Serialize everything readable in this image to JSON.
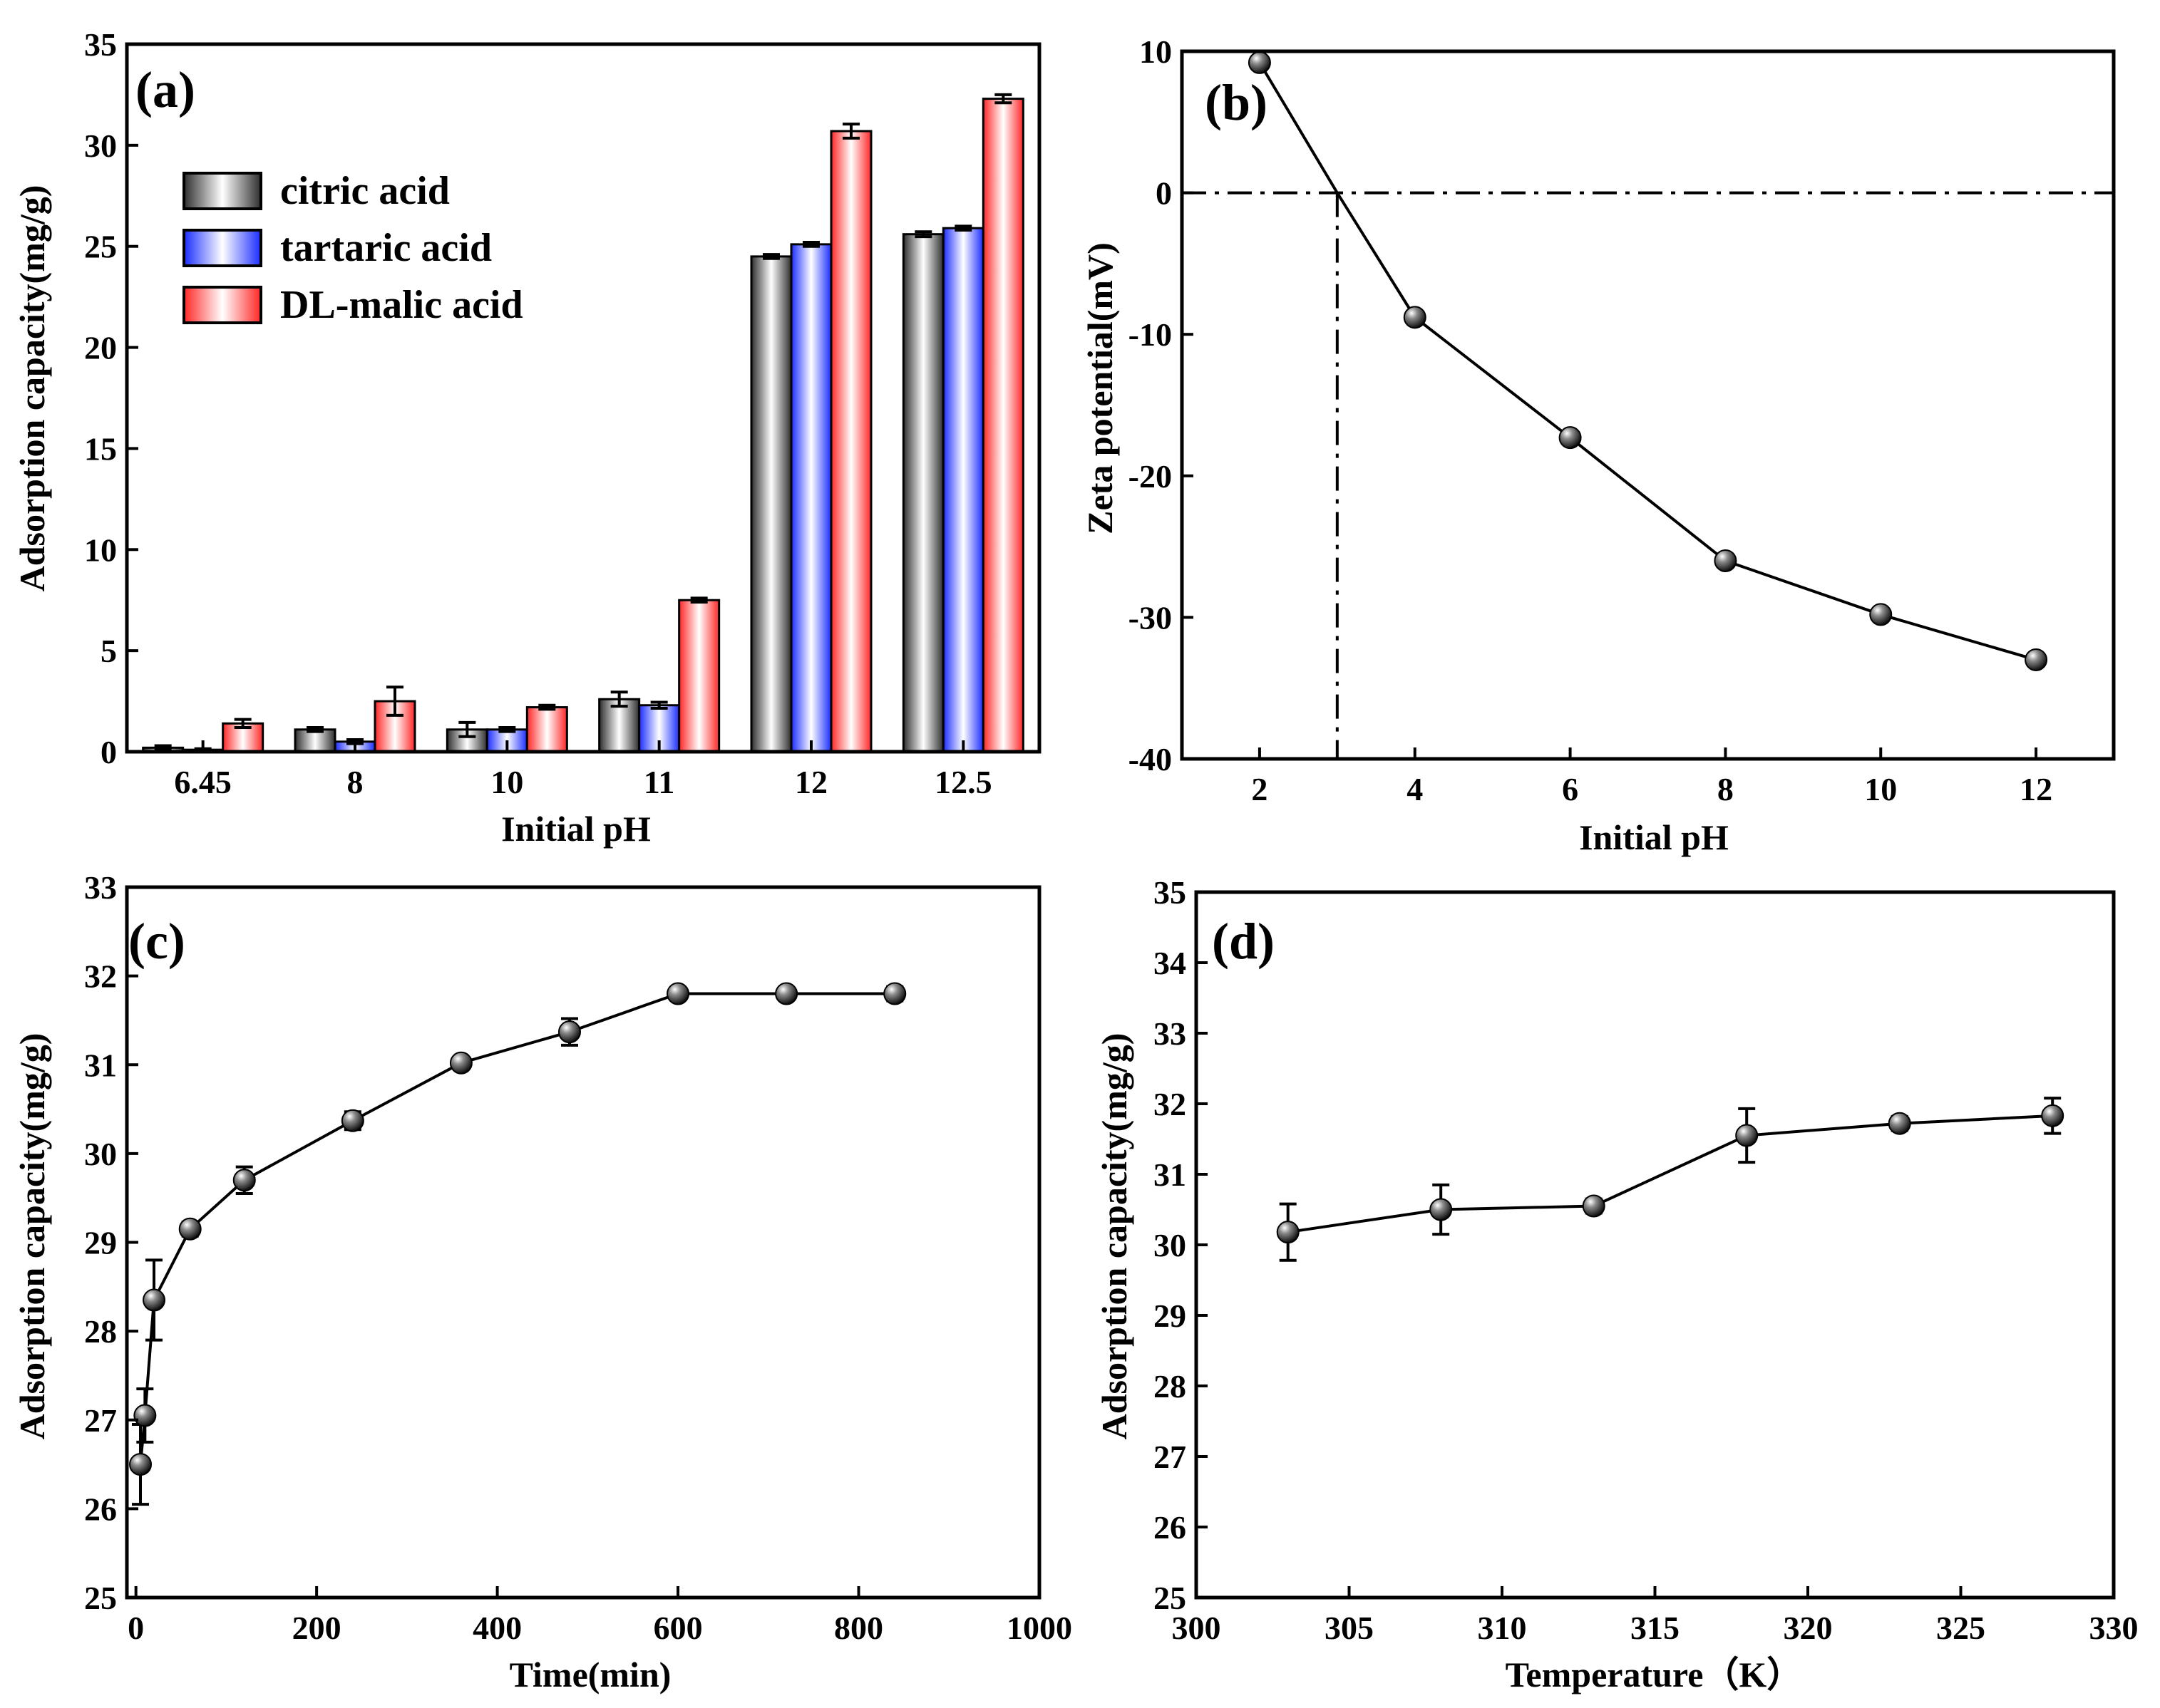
{
  "chart_data": [
    {
      "id": "a",
      "type": "bar",
      "panel_label": "(a)",
      "xlabel": "Initial pH",
      "ylabel": "Adsorption capacity(mg/g)",
      "categories": [
        "6.45",
        "8",
        "10",
        "11",
        "12",
        "12.5"
      ],
      "ylim": [
        0,
        35
      ],
      "yticks": [
        0,
        5,
        10,
        15,
        20,
        25,
        30,
        35
      ],
      "legend_position": "top-left",
      "series": [
        {
          "name": "citric acid",
          "color": "#6e6e6e",
          "values": [
            0.2,
            1.1,
            1.1,
            2.6,
            24.5,
            25.6
          ],
          "errors": [
            0.1,
            0.1,
            0.35,
            0.35,
            0.1,
            0.12
          ]
        },
        {
          "name": "tartaric acid",
          "color": "#5a6cf0",
          "values": [
            0.1,
            0.5,
            1.1,
            2.3,
            25.1,
            25.9
          ],
          "errors": [
            0.05,
            0.1,
            0.1,
            0.15,
            0.1,
            0.1
          ]
        },
        {
          "name": "DL-malic acid",
          "color": "#f07070",
          "values": [
            1.4,
            2.5,
            2.2,
            7.5,
            30.7,
            32.3
          ],
          "errors": [
            0.2,
            0.7,
            0.1,
            0.1,
            0.35,
            0.2
          ]
        }
      ]
    },
    {
      "id": "b",
      "type": "line",
      "panel_label": "(b)",
      "xlabel": "Initial pH",
      "ylabel": "Zeta potential(mV)",
      "x": [
        2,
        3,
        4,
        6,
        8,
        10,
        12
      ],
      "y": [
        9.2,
        0,
        -8.8,
        -17.3,
        -26.0,
        -29.8,
        -33.0
      ],
      "point_markers": [
        true,
        false,
        true,
        true,
        true,
        true,
        true
      ],
      "xlim": [
        1,
        13
      ],
      "ylim": [
        -40,
        10
      ],
      "xticks": [
        2,
        4,
        6,
        8,
        10,
        12
      ],
      "yticks": [
        10,
        0,
        -10,
        -20,
        -30,
        -40
      ],
      "reference_lines": {
        "horizontal_y": 0,
        "vertical_x": 3
      }
    },
    {
      "id": "c",
      "type": "line",
      "panel_label": "(c)",
      "xlabel": "Time(min)",
      "ylabel": "Adsorption capacity(mg/g)",
      "x": [
        5,
        10,
        20,
        60,
        120,
        240,
        360,
        480,
        600,
        720,
        840
      ],
      "y": [
        26.5,
        27.05,
        28.35,
        29.15,
        29.7,
        30.37,
        31.02,
        31.37,
        31.8,
        31.8,
        31.8
      ],
      "errors": [
        0.45,
        0.3,
        0.45,
        0.08,
        0.15,
        0.1,
        0.05,
        0.15,
        0.05,
        0.05,
        0.08
      ],
      "xlim": [
        -10,
        1000
      ],
      "ylim": [
        25,
        33
      ],
      "xticks": [
        0,
        200,
        400,
        600,
        800,
        1000
      ],
      "yticks": [
        25,
        26,
        27,
        28,
        29,
        30,
        31,
        32,
        33
      ]
    },
    {
      "id": "d",
      "type": "line",
      "panel_label": "(d)",
      "xlabel": "Temperature（K）",
      "ylabel": "Adsorption capacity(mg/g)",
      "x": [
        303,
        308,
        313,
        318,
        323,
        328
      ],
      "y": [
        30.18,
        30.5,
        30.55,
        31.55,
        31.72,
        31.83
      ],
      "errors": [
        0.4,
        0.35,
        0.1,
        0.38,
        0.1,
        0.25
      ],
      "xlim": [
        300,
        330
      ],
      "ylim": [
        25,
        35
      ],
      "xticks": [
        300,
        305,
        310,
        315,
        320,
        325,
        330
      ],
      "yticks": [
        25,
        26,
        27,
        28,
        29,
        30,
        31,
        32,
        33,
        34,
        35
      ]
    }
  ]
}
